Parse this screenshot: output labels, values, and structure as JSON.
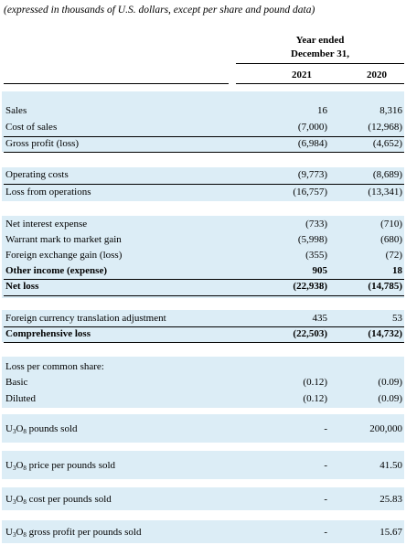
{
  "caption": "(expressed in thousands of U.S. dollars, except per share and pound data)",
  "header": {
    "period_line1": "Year ended",
    "period_line2": "December 31,",
    "col_2021": "2021",
    "col_2020": "2020"
  },
  "rows": [
    {
      "label": "Sales",
      "v2021": "16",
      "v2020": "8,316"
    },
    {
      "label": "Cost of sales",
      "v2021": "(7,000)",
      "v2020": "(12,968)"
    },
    {
      "label": "Gross profit (loss)",
      "v2021": "(6,984)",
      "v2020": "(4,652)"
    },
    {
      "label": "Operating costs",
      "v2021": "(9,773)",
      "v2020": "(8,689)"
    },
    {
      "label": "Loss from operations",
      "v2021": "(16,757)",
      "v2020": "(13,341)"
    },
    {
      "label": "Net interest expense",
      "v2021": "(733)",
      "v2020": "(710)"
    },
    {
      "label": "Warrant mark to market gain",
      "v2021": "(5,998)",
      "v2020": "(680)"
    },
    {
      "label": "Foreign exchange gain (loss)",
      "v2021": "(355)",
      "v2020": "(72)"
    },
    {
      "label": "Other income (expense)",
      "v2021": "905",
      "v2020": "18"
    },
    {
      "label": "Net  loss",
      "v2021": "(22,938)",
      "v2020": "(14,785)"
    },
    {
      "label": "Foreign currency translation adjustment",
      "v2021": "435",
      "v2020": "53"
    },
    {
      "label": "Comprehensive loss",
      "v2021": "(22,503)",
      "v2020": "(14,732)"
    },
    {
      "label": "Loss per common share:",
      "v2021": "",
      "v2020": ""
    },
    {
      "label": "Basic",
      "v2021": "(0.12)",
      "v2020": "(0.09)"
    },
    {
      "label": "Diluted",
      "v2021": "(0.12)",
      "v2020": "(0.09)"
    }
  ],
  "u3o8": {
    "prefix": "U",
    "sub1": "3",
    "mid": "O",
    "sub2": "8",
    "rows": [
      {
        "label": " pounds sold",
        "v2021": "-",
        "v2020": "200,000"
      },
      {
        "label": " price per pounds sold",
        "v2021": "-",
        "v2020": "41.50"
      },
      {
        "label": " cost per pounds sold",
        "v2021": "-",
        "v2020": "25.83"
      },
      {
        "label": " gross profit per pounds sold",
        "v2021": "-",
        "v2020": "15.67"
      }
    ]
  }
}
